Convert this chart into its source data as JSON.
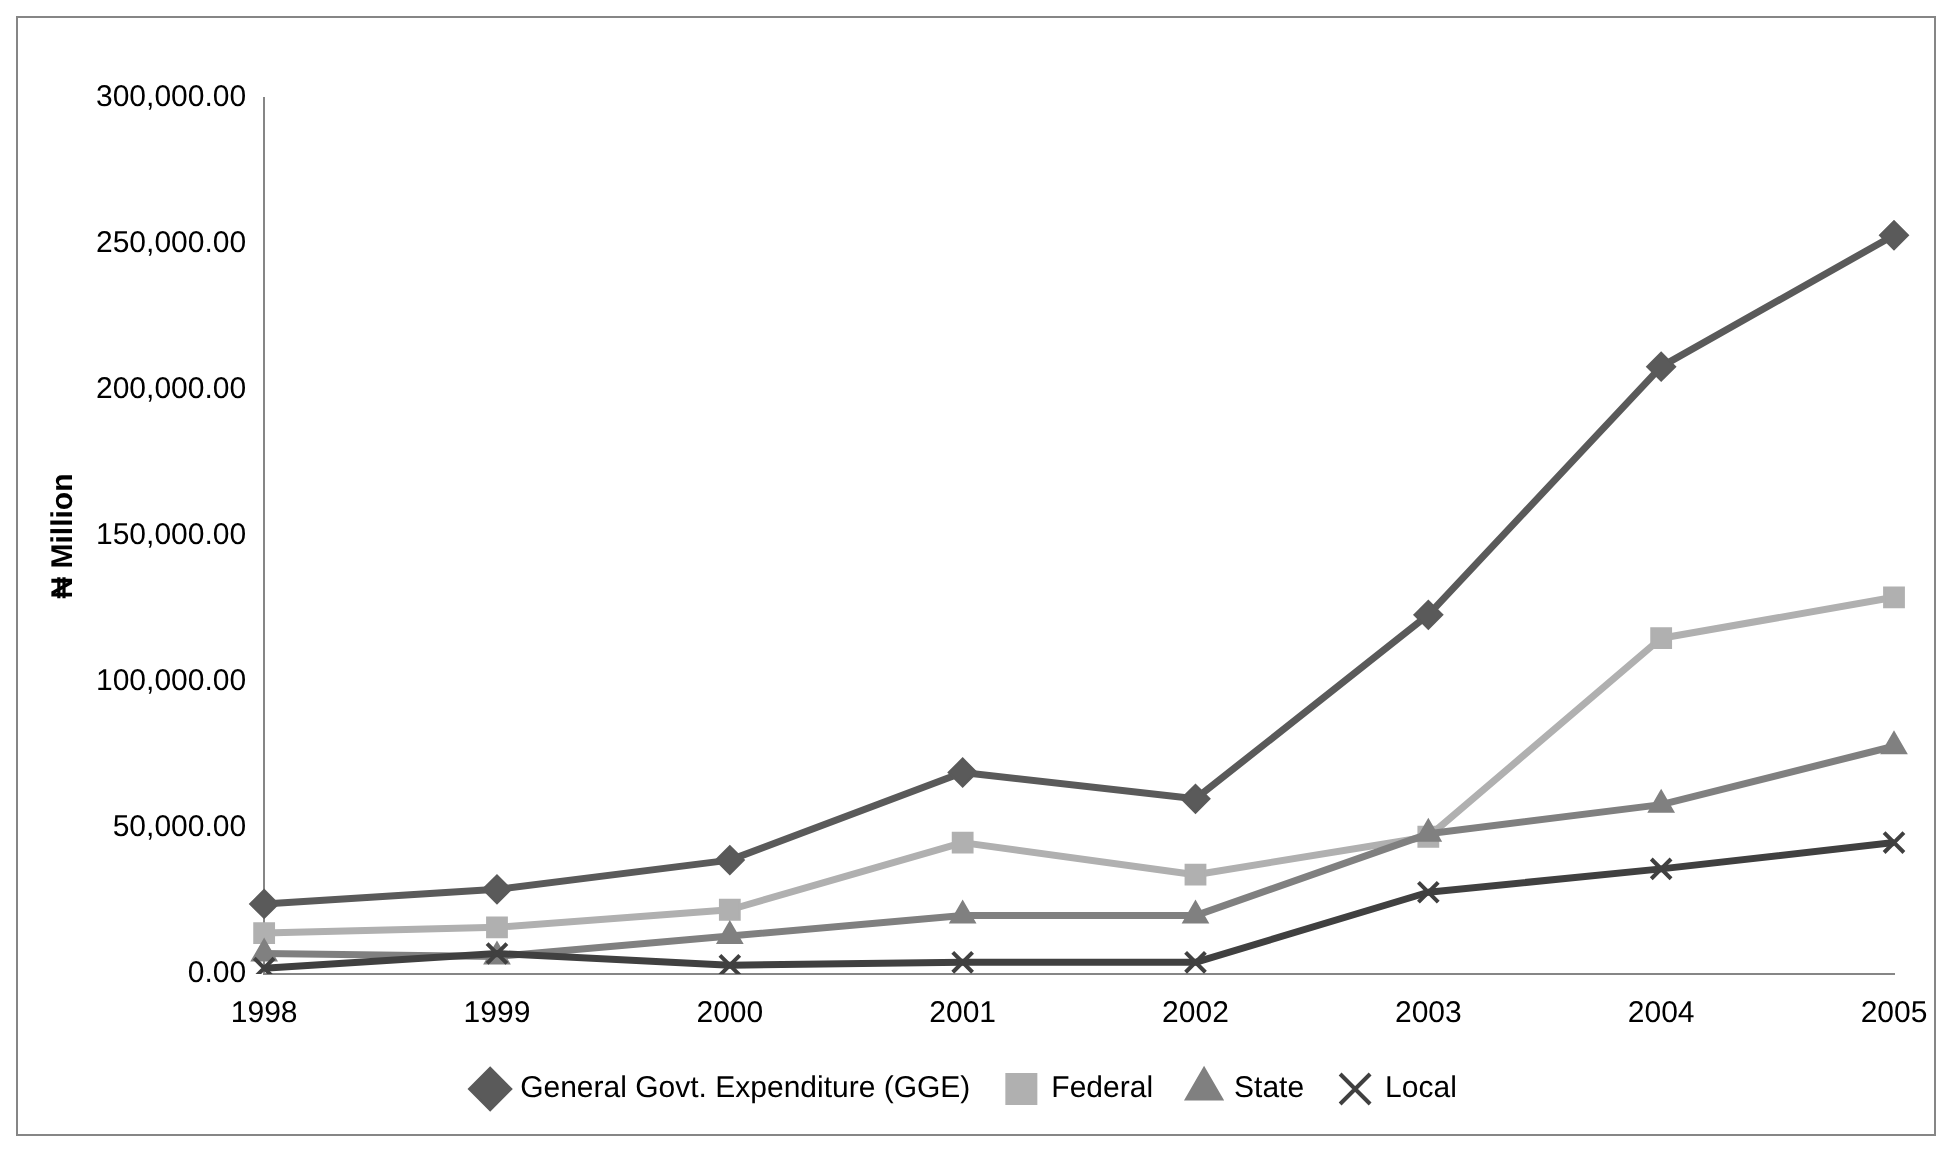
{
  "chart_data": {
    "type": "line",
    "ylabel": "₦ Million",
    "categories": [
      "1998",
      "1999",
      "2000",
      "2001",
      "2002",
      "2003",
      "2004",
      "2005"
    ],
    "series": [
      {
        "name": "General Govt. Expenditure (GGE)",
        "color": "#5a5a5a",
        "marker": "diamond",
        "values": [
          24000,
          29000,
          39000,
          69000,
          60000,
          123000,
          208000,
          253000
        ]
      },
      {
        "name": "Federal",
        "color": "#b0b0b0",
        "marker": "square",
        "values": [
          14000,
          16000,
          22000,
          45000,
          34000,
          47000,
          115000,
          129000
        ]
      },
      {
        "name": "State",
        "color": "#808080",
        "marker": "triangle",
        "values": [
          7000,
          6000,
          13000,
          20000,
          20000,
          48000,
          58000,
          78000
        ]
      },
      {
        "name": "Local",
        "color": "#404040",
        "marker": "cross",
        "values": [
          2000,
          7000,
          3000,
          4000,
          4000,
          28000,
          36000,
          45000
        ]
      }
    ],
    "ylim": [
      0,
      300000
    ],
    "yticks": [
      {
        "value": 0,
        "label": "0.00"
      },
      {
        "value": 50000,
        "label": "50,000.00"
      },
      {
        "value": 100000,
        "label": "100,000.00"
      },
      {
        "value": 150000,
        "label": "150,000.00"
      },
      {
        "value": 200000,
        "label": "200,000.00"
      },
      {
        "value": 250000,
        "label": "250,000.00"
      },
      {
        "value": 300000,
        "label": "300,000.00"
      }
    ],
    "grid": false,
    "legend": "bottom",
    "line_style": "solid"
  }
}
